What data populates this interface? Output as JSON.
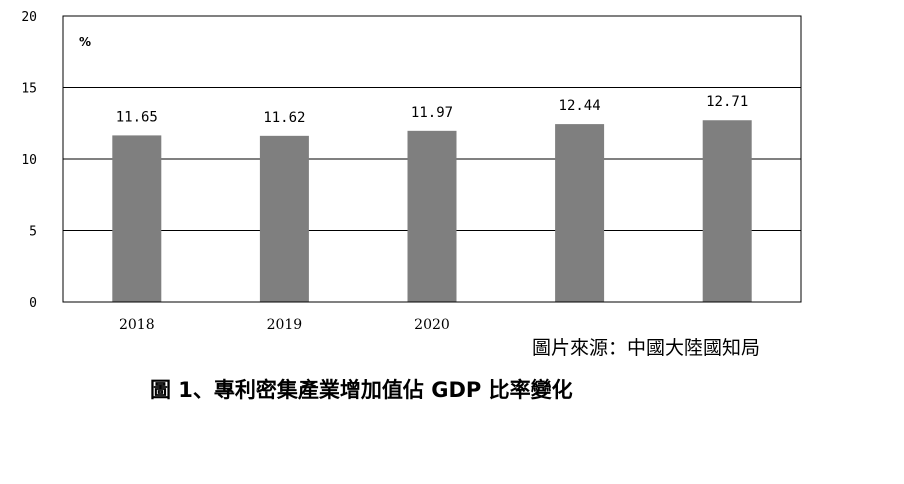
{
  "source_text": "圖片來源：中國大陸國知局",
  "caption": "圖 1、專利密集產業增加值佔 GDP 比率變化",
  "chart_data": {
    "type": "bar",
    "categories": [
      "2018",
      "2019",
      "2020",
      "",
      ""
    ],
    "values": [
      11.65,
      11.62,
      11.97,
      12.44,
      12.71
    ],
    "data_labels": [
      "11.65",
      "11.62",
      "11.97",
      "12.44",
      "12.71"
    ],
    "unit_label": "%",
    "yticks": [
      "0",
      "5",
      "10",
      "15",
      "20"
    ],
    "ylim": [
      0,
      20
    ],
    "grid": true,
    "bar_color": "#7f7f7f"
  }
}
